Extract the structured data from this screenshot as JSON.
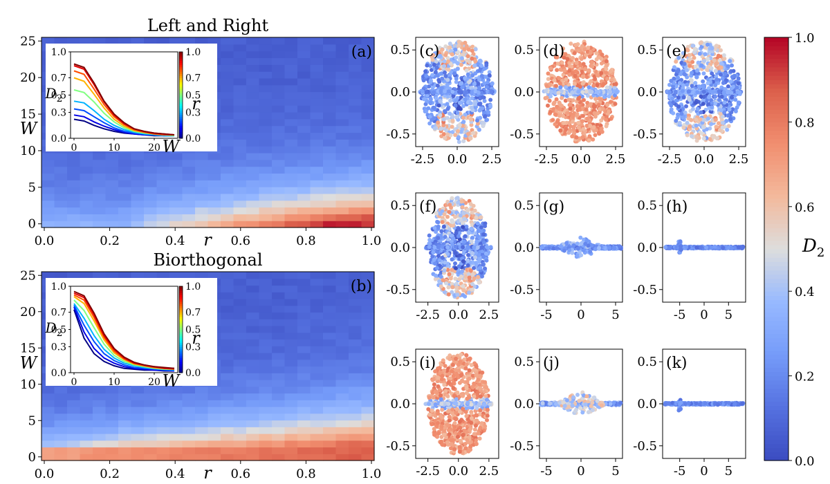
{
  "figure": {
    "colormap": "coolwarm",
    "inset_colormap": "jet"
  },
  "chart_data": [
    {
      "id": "a",
      "type": "heatmap",
      "panel_label": "(a)",
      "title": "Left and Right",
      "xlabel": "r",
      "ylabel": "W",
      "xlim": [
        0.0,
        1.0
      ],
      "ylim": [
        0,
        25
      ],
      "xticks": [
        "0.0",
        "0.2",
        "0.4",
        "0.6",
        "0.8",
        "1.0"
      ],
      "yticks": [
        "0",
        "5",
        "10",
        "15",
        "20",
        "25"
      ],
      "colorbar_label": "D2",
      "inset": {
        "type": "line",
        "xlabel": "W",
        "ylabel": "D2",
        "xlim": [
          0,
          25
        ],
        "ylim": [
          0.0,
          1.0
        ],
        "xticks": [
          "0",
          "10",
          "20"
        ],
        "yticks": [
          "0.0",
          "0.3",
          "0.5",
          "0.7",
          "1.0"
        ],
        "colorbar_label": "r",
        "colorbar_ticks": [
          "0.0",
          "0.3",
          "0.5",
          "0.7",
          "1.0"
        ],
        "x": [
          0,
          2.5,
          5,
          7.5,
          10,
          12.5,
          15,
          17.5,
          20,
          22.5,
          25
        ],
        "series": [
          {
            "name": "r=0.0",
            "r": 0.0,
            "values": [
              0.22,
              0.2,
              0.15,
              0.11,
              0.08,
              0.06,
              0.05,
              0.04,
              0.03,
              0.03,
              0.03
            ]
          },
          {
            "name": "r=0.1",
            "r": 0.1,
            "values": [
              0.27,
              0.25,
              0.19,
              0.14,
              0.1,
              0.07,
              0.05,
              0.04,
              0.04,
              0.03,
              0.03
            ]
          },
          {
            "name": "r=0.2",
            "r": 0.2,
            "values": [
              0.34,
              0.32,
              0.25,
              0.18,
              0.12,
              0.08,
              0.06,
              0.05,
              0.04,
              0.03,
              0.03
            ]
          },
          {
            "name": "r=0.3",
            "r": 0.3,
            "values": [
              0.43,
              0.41,
              0.32,
              0.22,
              0.15,
              0.1,
              0.07,
              0.05,
              0.04,
              0.03,
              0.03
            ]
          },
          {
            "name": "r=0.5",
            "r": 0.5,
            "values": [
              0.56,
              0.53,
              0.42,
              0.29,
              0.19,
              0.12,
              0.08,
              0.06,
              0.05,
              0.04,
              0.03
            ]
          },
          {
            "name": "r=0.7",
            "r": 0.7,
            "values": [
              0.7,
              0.66,
              0.51,
              0.35,
              0.22,
              0.14,
              0.09,
              0.07,
              0.05,
              0.04,
              0.04
            ]
          },
          {
            "name": "r=0.8",
            "r": 0.8,
            "values": [
              0.78,
              0.74,
              0.57,
              0.39,
              0.25,
              0.16,
              0.1,
              0.07,
              0.05,
              0.04,
              0.04
            ]
          },
          {
            "name": "r=0.9",
            "r": 0.9,
            "values": [
              0.84,
              0.8,
              0.62,
              0.42,
              0.27,
              0.17,
              0.11,
              0.08,
              0.06,
              0.05,
              0.04
            ]
          },
          {
            "name": "r=1.0",
            "r": 1.0,
            "values": [
              0.86,
              0.82,
              0.64,
              0.43,
              0.28,
              0.18,
              0.11,
              0.08,
              0.06,
              0.05,
              0.04
            ]
          }
        ]
      }
    },
    {
      "id": "b",
      "type": "heatmap",
      "panel_label": "(b)",
      "title": "Biorthogonal",
      "xlabel": "r",
      "ylabel": "W",
      "xlim": [
        0.0,
        1.0
      ],
      "ylim": [
        0,
        25
      ],
      "xticks": [
        "0.0",
        "0.2",
        "0.4",
        "0.6",
        "0.8",
        "1.0"
      ],
      "yticks": [
        "0",
        "5",
        "10",
        "15",
        "20",
        "25"
      ],
      "colorbar_label": "D2",
      "inset": {
        "type": "line",
        "xlabel": "W",
        "ylabel": "D2",
        "xlim": [
          0,
          25
        ],
        "ylim": [
          0.0,
          1.0
        ],
        "xticks": [
          "0",
          "10",
          "20"
        ],
        "yticks": [
          "0.0",
          "0.3",
          "0.5",
          "0.7",
          "1.0"
        ],
        "colorbar_label": "r",
        "colorbar_ticks": [
          "0.0",
          "0.3",
          "0.5",
          "0.7",
          "1.0"
        ],
        "x": [
          0,
          2.5,
          5,
          7.5,
          10,
          12.5,
          15,
          17.5,
          20,
          22.5,
          25
        ],
        "series": [
          {
            "name": "r=0.0",
            "r": 0.0,
            "values": [
              0.73,
              0.4,
              0.22,
              0.13,
              0.08,
              0.05,
              0.04,
              0.03,
              0.03,
              0.02,
              0.02
            ]
          },
          {
            "name": "r=0.1",
            "r": 0.1,
            "values": [
              0.76,
              0.47,
              0.28,
              0.17,
              0.11,
              0.07,
              0.05,
              0.04,
              0.03,
              0.03,
              0.02
            ]
          },
          {
            "name": "r=0.2",
            "r": 0.2,
            "values": [
              0.78,
              0.55,
              0.36,
              0.22,
              0.14,
              0.09,
              0.06,
              0.05,
              0.04,
              0.03,
              0.03
            ]
          },
          {
            "name": "r=0.3",
            "r": 0.3,
            "values": [
              0.8,
              0.63,
              0.43,
              0.27,
              0.17,
              0.11,
              0.08,
              0.06,
              0.05,
              0.04,
              0.03
            ]
          },
          {
            "name": "r=0.5",
            "r": 0.5,
            "values": [
              0.84,
              0.72,
              0.52,
              0.33,
              0.2,
              0.13,
              0.09,
              0.07,
              0.05,
              0.04,
              0.04
            ]
          },
          {
            "name": "r=0.7",
            "r": 0.7,
            "values": [
              0.88,
              0.8,
              0.6,
              0.38,
              0.23,
              0.15,
              0.1,
              0.08,
              0.06,
              0.05,
              0.04
            ]
          },
          {
            "name": "r=0.8",
            "r": 0.8,
            "values": [
              0.9,
              0.84,
              0.64,
              0.41,
              0.25,
              0.16,
              0.11,
              0.08,
              0.06,
              0.05,
              0.04
            ]
          },
          {
            "name": "r=0.9",
            "r": 0.9,
            "values": [
              0.92,
              0.87,
              0.67,
              0.43,
              0.27,
              0.17,
              0.11,
              0.09,
              0.07,
              0.05,
              0.05
            ]
          },
          {
            "name": "r=1.0",
            "r": 1.0,
            "values": [
              0.94,
              0.89,
              0.69,
              0.45,
              0.28,
              0.18,
              0.12,
              0.09,
              0.07,
              0.06,
              0.05
            ]
          }
        ]
      }
    },
    {
      "id": "c",
      "type": "scatter",
      "panel_label": "(c)",
      "pattern": "ellipse-mixed",
      "xlim": [
        -3.0,
        3.0
      ],
      "ylim": [
        -0.65,
        0.65
      ],
      "xticks": [
        "-2.5",
        "0.0",
        "2.5"
      ],
      "xtick_values": [
        -2.5,
        0.0,
        2.5
      ],
      "yticks": [
        "-0.5",
        "0.0",
        "0.5"
      ],
      "ytick_values": [
        -0.5,
        0.0,
        0.5
      ]
    },
    {
      "id": "d",
      "type": "scatter",
      "panel_label": "(d)",
      "pattern": "ellipse-red",
      "xlim": [
        -3.0,
        3.0
      ],
      "ylim": [
        -0.65,
        0.65
      ],
      "xticks": [
        "-2.5",
        "0.0",
        "2.5"
      ],
      "xtick_values": [
        -2.5,
        0.0,
        2.5
      ],
      "yticks": [
        "-0.5",
        "0.0",
        "0.5"
      ],
      "ytick_values": [
        -0.5,
        0.0,
        0.5
      ]
    },
    {
      "id": "e",
      "type": "scatter",
      "panel_label": "(e)",
      "pattern": "ellipse-mixed",
      "xlim": [
        -3.0,
        3.0
      ],
      "ylim": [
        -0.65,
        0.65
      ],
      "xticks": [
        "-2.5",
        "0.0",
        "2.5"
      ],
      "xtick_values": [
        -2.5,
        0.0,
        2.5
      ],
      "yticks": [
        "-0.5",
        "0.0",
        "0.5"
      ],
      "ytick_values": [
        -0.5,
        0.0,
        0.5
      ]
    },
    {
      "id": "f",
      "type": "scatter",
      "panel_label": "(f)",
      "pattern": "ellipse-mixed-narrow",
      "xlim": [
        -3.5,
        3.3
      ],
      "ylim": [
        -0.65,
        0.65
      ],
      "xticks": [
        "-2.5",
        "0.0",
        "2.5"
      ],
      "xtick_values": [
        -2.5,
        0.0,
        2.5
      ],
      "yticks": [
        "-0.5",
        "0.0",
        "0.5"
      ],
      "ytick_values": [
        -0.5,
        0.0,
        0.5
      ]
    },
    {
      "id": "g",
      "type": "scatter",
      "panel_label": "(g)",
      "pattern": "line-blue",
      "xlim": [
        -6.0,
        6.0
      ],
      "ylim": [
        -0.65,
        0.65
      ],
      "xticks": [
        "-5",
        "0",
        "5"
      ],
      "xtick_values": [
        -5,
        0,
        5
      ],
      "yticks": [
        "-0.5",
        "0.0",
        "0.5"
      ],
      "ytick_values": [
        -0.5,
        0.0,
        0.5
      ]
    },
    {
      "id": "h",
      "type": "scatter",
      "panel_label": "(h)",
      "pattern": "line-flat",
      "xlim": [
        -8.5,
        8.5
      ],
      "ylim": [
        -0.65,
        0.65
      ],
      "xticks": [
        "-5",
        "0",
        "5"
      ],
      "xtick_values": [
        -5,
        0,
        5
      ],
      "yticks": [
        "-0.5",
        "0.0",
        "0.5"
      ],
      "ytick_values": [
        -0.5,
        0.0,
        0.5
      ]
    },
    {
      "id": "i",
      "type": "scatter",
      "panel_label": "(i)",
      "pattern": "ellipse-red-narrow",
      "xlim": [
        -3.5,
        3.3
      ],
      "ylim": [
        -0.65,
        0.65
      ],
      "xticks": [
        "-2.5",
        "0.0",
        "2.5"
      ],
      "xtick_values": [
        -2.5,
        0.0,
        2.5
      ],
      "yticks": [
        "-0.5",
        "0.0",
        "0.5"
      ],
      "ytick_values": [
        -0.5,
        0.0,
        0.5
      ]
    },
    {
      "id": "j",
      "type": "scatter",
      "panel_label": "(j)",
      "pattern": "line-light",
      "xlim": [
        -6.0,
        6.0
      ],
      "ylim": [
        -0.65,
        0.65
      ],
      "xticks": [
        "-5",
        "0",
        "5"
      ],
      "xtick_values": [
        -5,
        0,
        5
      ],
      "yticks": [
        "-0.5",
        "0.0",
        "0.5"
      ],
      "ytick_values": [
        -0.5,
        0.0,
        0.5
      ]
    },
    {
      "id": "k",
      "type": "scatter",
      "panel_label": "(k)",
      "pattern": "line-flat",
      "xlim": [
        -8.5,
        8.5
      ],
      "ylim": [
        -0.65,
        0.65
      ],
      "xticks": [
        "-5",
        "0",
        "5"
      ],
      "xtick_values": [
        -5,
        0,
        5
      ],
      "yticks": [
        "-0.5",
        "0.0",
        "0.5"
      ],
      "ytick_values": [
        -0.5,
        0.0,
        0.5
      ]
    },
    {
      "id": "colorbar",
      "type": "colorbar",
      "label": "D2",
      "ticks": [
        "0.0",
        "0.2",
        "0.4",
        "0.6",
        "0.8",
        "1.0"
      ],
      "tick_values": [
        0.0,
        0.2,
        0.4,
        0.6,
        0.8,
        1.0
      ]
    }
  ]
}
